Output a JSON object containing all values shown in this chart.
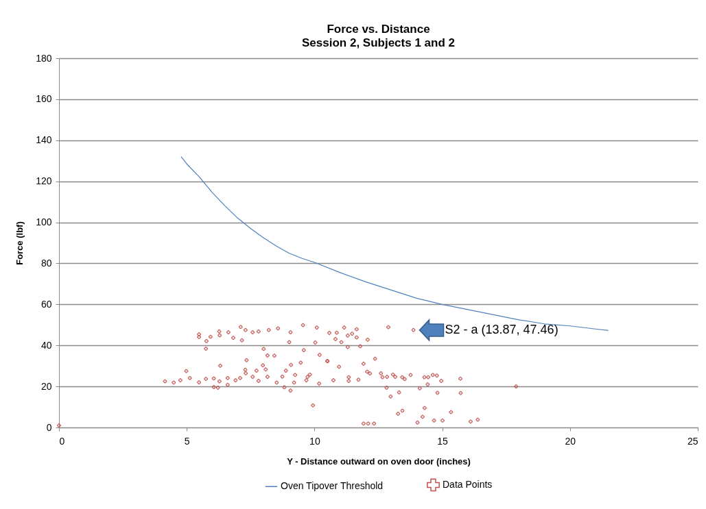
{
  "chart_data": {
    "type": "scatter",
    "title": "Force vs. Distance",
    "subtitle": "Session 2, Subjects 1 and 2",
    "xlabel": "Y - Distance outward on oven door (inches)",
    "ylabel": "Force (lbf)",
    "xlim": [
      0,
      25
    ],
    "xticks": [
      0,
      5,
      10,
      15,
      20,
      25
    ],
    "ylim": [
      0,
      180
    ],
    "yticks": [
      0,
      20,
      40,
      60,
      80,
      100,
      120,
      140,
      160,
      180
    ],
    "grid": "y",
    "legend": "bottom",
    "annotations": [
      {
        "text": "S2 - a (13.87, 47.46)",
        "x": 13.87,
        "y": 47.46
      }
    ],
    "series": [
      {
        "name": "Oven Tipover Threshold",
        "type": "line",
        "color": "#4f81bd",
        "x": [
          4.78,
          5,
          5.5,
          6,
          6.5,
          7,
          7.5,
          8,
          8.5,
          9,
          9.5,
          10,
          11,
          12,
          13,
          14,
          15,
          16,
          17,
          18,
          19,
          20,
          21,
          21.5
        ],
        "values": [
          132,
          128.5,
          122,
          114.5,
          108,
          102,
          97,
          92.5,
          88.5,
          85,
          82.5,
          80.5,
          75.5,
          71,
          67,
          63,
          60,
          57.5,
          55,
          52.5,
          50.5,
          49.5,
          48,
          47.3
        ]
      },
      {
        "name": "Data Points",
        "marker": "cross",
        "color": "#c0504d",
        "x": [
          5.48,
          5.48,
          5.77,
          5.93,
          6.27,
          6.63,
          7.11,
          7.3,
          7.58,
          7.81,
          8.21,
          8.57,
          9.06,
          9.55,
          10.09,
          10.03,
          9.01,
          7.16,
          6.82,
          6.29,
          5.75,
          8.01,
          9.58,
          8.16,
          8.43,
          7.34,
          6.31,
          7.98,
          9.08,
          9.46,
          10.2,
          10.5,
          4.98,
          7.29,
          7.73,
          8.88,
          8.09,
          4.15,
          4.49,
          4.75,
          5.12,
          5.48,
          5.75,
          6.06,
          6.28,
          6.6,
          6.91,
          6.06,
          6.22,
          6.6,
          7.09,
          7.31,
          7.58,
          7.81,
          8.16,
          8.52,
          8.82,
          9.06,
          9.24,
          9.73,
          9.82,
          9.68,
          10.18,
          9.94,
          9.2,
          8.74,
          10.58,
          10.87,
          11.16,
          11.47,
          11.65,
          11.65,
          10.82,
          11.05,
          11.3,
          12.08,
          11.3,
          11.79,
          12.89,
          13.87,
          10.51,
          10.96,
          11.92,
          12.37,
          10.74,
          11.34,
          11.34,
          11.72,
          12.06,
          12.17,
          12.6,
          12.66,
          12.84,
          13.07,
          13.16,
          13.43,
          13.53,
          13.76,
          14.3,
          14.45,
          14.63,
          14.79,
          14.96,
          14.43,
          15.71,
          12.82,
          12.98,
          13.31,
          14.12,
          14.81,
          15.72,
          13.27,
          13.44,
          14.31,
          15.34,
          14.23,
          14.03,
          14.68,
          15.01,
          16.11,
          16.39,
          11.92,
          12.1,
          12.33,
          17.89,
          0
        ],
        "values": [
          45.4,
          44.1,
          42.1,
          44.2,
          46.8,
          46.4,
          49,
          47.5,
          46.4,
          46.8,
          47.5,
          48.3,
          46.4,
          49.9,
          48.7,
          41.4,
          41.6,
          42.5,
          43.7,
          44.9,
          38.4,
          38.3,
          37.7,
          35.1,
          35,
          32.8,
          30.1,
          30.3,
          30.5,
          31.6,
          35.4,
          32.4,
          27.5,
          28.1,
          27.7,
          27.7,
          28.3,
          22.5,
          21.9,
          23,
          24.1,
          22,
          23.7,
          23.9,
          22.5,
          24.1,
          23,
          19.7,
          19.4,
          20.8,
          24.1,
          26.4,
          24.7,
          22.7,
          24.7,
          21.9,
          19.6,
          18,
          25.6,
          24.7,
          25.8,
          23,
          21.4,
          10.8,
          21.9,
          24.8,
          46.1,
          46.2,
          48.7,
          45.7,
          47.9,
          43.9,
          43.1,
          41.6,
          44.8,
          42.8,
          39.2,
          39.6,
          48.9,
          47.5,
          32.3,
          29.6,
          31.1,
          33.5,
          23,
          24.5,
          22.7,
          23.3,
          27.2,
          26.3,
          26.4,
          24.5,
          24.7,
          25.8,
          24.7,
          24.5,
          23.6,
          25.6,
          24.5,
          24.5,
          25.6,
          25.3,
          22.7,
          21,
          23.8,
          19.4,
          15.1,
          17.1,
          19.1,
          16.9,
          16.8,
          6.7,
          8.2,
          9.5,
          7.5,
          5.2,
          2.4,
          3.4,
          3.4,
          2.9,
          3.8,
          1.9,
          1.9,
          1.9,
          20,
          1
        ]
      }
    ]
  }
}
